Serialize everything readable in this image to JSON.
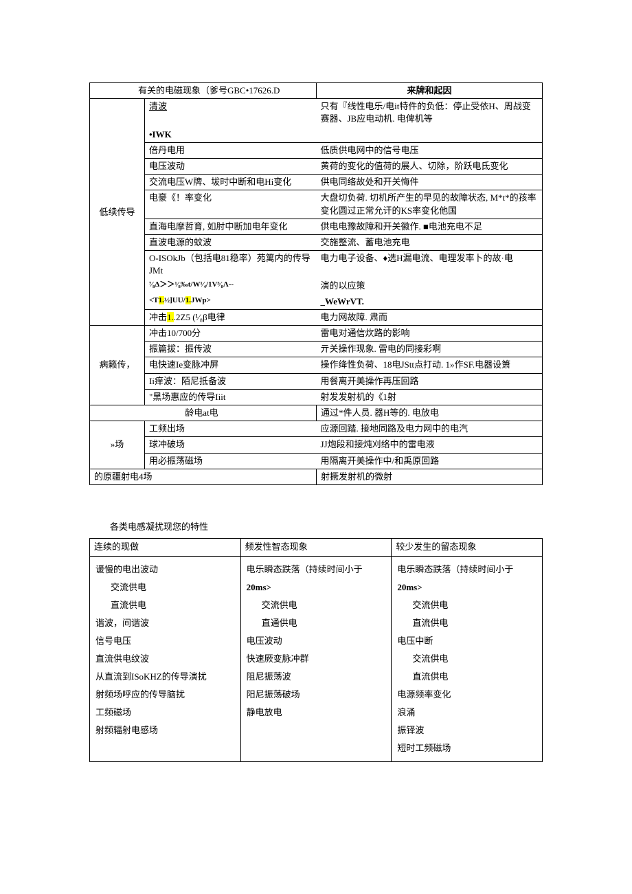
{
  "table1": {
    "header": {
      "left": "有关的电磁现象（爹号GBC•17626.D",
      "right": "来牌和起因"
    },
    "groups": [
      {
        "label": "低续传导",
        "rows": [
          {
            "phenomenon": "清波",
            "phenomClass": "underline",
            "cause": "只有『线性电乐/电it特件的负低：停止受依H、周战变赛器、JB应电动机. 电俾机等",
            "multirowCause": true,
            "next": "•IWK",
            "nextBold": true
          },
          {
            "phenomenon": "倍丹电用",
            "cause": "低质供电网中的信号电压"
          },
          {
            "phenomenon": "电压波动",
            "cause": "黄荷的变化的值荷的展人、切除，阶跃电氐变化"
          },
          {
            "phenomenon": "交流电压W牌、坺时中断和电Hi变化",
            "cause": "供电同络故处和开关悔件"
          },
          {
            "phenomenon": "电豪《！率变化",
            "cause": "大盘切负荷. 切机所产生的早见的故障状态, M*t*的孩率变化圆过正常允讦的KS率变化他国"
          },
          {
            "phenomenon": "直海电摩哲育, 如肘中断加电年变化",
            "cause": "供电电豫故障和开关徽作. ■电池充电不足"
          },
          {
            "phenomenon": "直波电源的蚊波",
            "cause": "交施整流、蓄电池充电"
          },
          {
            "phenomenon": "O-ISOkJb（包括电81稳率）苑篱内的传导JMt",
            "cont": "⁷⁄₈Δ＞＞¹⁄₈‰t/W¹⁄₄/1V³⁄₈Λ--",
            "cont2": "<T1.½]UU/1.JWp>",
            "cont2Highlight": true,
            "cause": "电力电子设备、♦选H漏电流、电理发率卜的故·电",
            "causeCont": "演的以应策",
            "causeCont2": "_WeWrVT."
          },
          {
            "phenomenon": "冲击1..2Z5 (¹⁄₈β电律",
            "phenomHighlight": "1.",
            "cause": "电力网故障.  肃而"
          }
        ]
      },
      {
        "label": "病籁传，",
        "rows": [
          {
            "phenomenon": "冲击10/700分",
            "cause": "雷电对通信炊路的影响"
          },
          {
            "phenomenon": "振篇拔：振传波",
            "cause": "亓关操作现象. 雷电的同接彩啊"
          },
          {
            "phenomenon": "电快速Ie变脉冲屏",
            "cause": "操作绛性负荷、18电JStt点打动. 1»作SF.电器设箫"
          },
          {
            "phenomenon": "Ii痒波：陌尼抵备波",
            "cause": "用餐离开美操作再压回路"
          },
          {
            "phenomenon": "\"黑场惠应的传导Iiit",
            "cause": "射发发射机的《1射"
          }
        ]
      },
      {
        "label": "",
        "singleRow": {
          "phenomenon": "龄电at电",
          "cause": "通过*件人员. 器H等的. 电放电"
        }
      },
      {
        "label": "»场",
        "rows": [
          {
            "phenomenon": "工频出场",
            "cause": "应源回踏. 接地同路及电力网中的电汽"
          },
          {
            "phenomenon": "球冲破场",
            "cause": "JJ炮段和接炖刈络中的雷电液"
          },
          {
            "phenomenon": "用必振荡磁场",
            "cause": "用隔离开美操作中/和禹原回路"
          }
        ]
      },
      {
        "label": "",
        "singleRow": {
          "phenomenon": "的原疆射电4场",
          "cause": "射撅发射机的微射",
          "fullLeft": true
        }
      }
    ]
  },
  "table2": {
    "title": "各类电感凝扰现您的特性",
    "headers": [
      "连续的现做",
      "频发性智态现象",
      "较少发生的留态现象"
    ],
    "columns": [
      [
        {
          "text": "谖慢的电出波动",
          "indent": false
        },
        {
          "text": "交流供电",
          "indent": true
        },
        {
          "text": "直流供电",
          "indent": true
        },
        {
          "text": "谐波，间谐波",
          "indent": false
        },
        {
          "text": "信号电压",
          "indent": false
        },
        {
          "text": "直流供电纹波",
          "indent": false
        },
        {
          "text": "从直流到ISoKHZ的传导演扰",
          "indent": false
        },
        {
          "text": "射频场呼应的传导脑扰",
          "indent": false
        },
        {
          "text": "工频磁场",
          "indent": false
        },
        {
          "text": "射频辐射电感场",
          "indent": false
        }
      ],
      [
        {
          "text": "电乐瞬态跌落（持续时间小于",
          "indent": false
        },
        {
          "text": "20ms>",
          "indent": false,
          "bold": true
        },
        {
          "text": "交流供电",
          "indent": true
        },
        {
          "text": "直通供电",
          "indent": true
        },
        {
          "text": "电压波动",
          "indent": false
        },
        {
          "text": "快速厥变脉冲群",
          "indent": false
        },
        {
          "text": "阻尼振荡波",
          "indent": false
        },
        {
          "text": "阳尼振荡破场",
          "indent": false
        },
        {
          "text": "静电放电",
          "indent": false
        }
      ],
      [
        {
          "text": "电乐瞬态跌落（持续时间小于",
          "indent": false
        },
        {
          "text": "20ms>",
          "indent": false,
          "bold": true
        },
        {
          "text": "交流供电",
          "indent": true
        },
        {
          "text": "直流供电",
          "indent": true
        },
        {
          "text": "电压中断",
          "indent": false
        },
        {
          "text": "交流供电",
          "indent": true
        },
        {
          "text": "直流供电",
          "indent": true
        },
        {
          "text": "电源频率变化",
          "indent": false
        },
        {
          "text": "浪涌",
          "indent": false
        },
        {
          "text": "振铎波",
          "indent": false
        },
        {
          "text": "短时工频磁场",
          "indent": false
        }
      ]
    ]
  }
}
